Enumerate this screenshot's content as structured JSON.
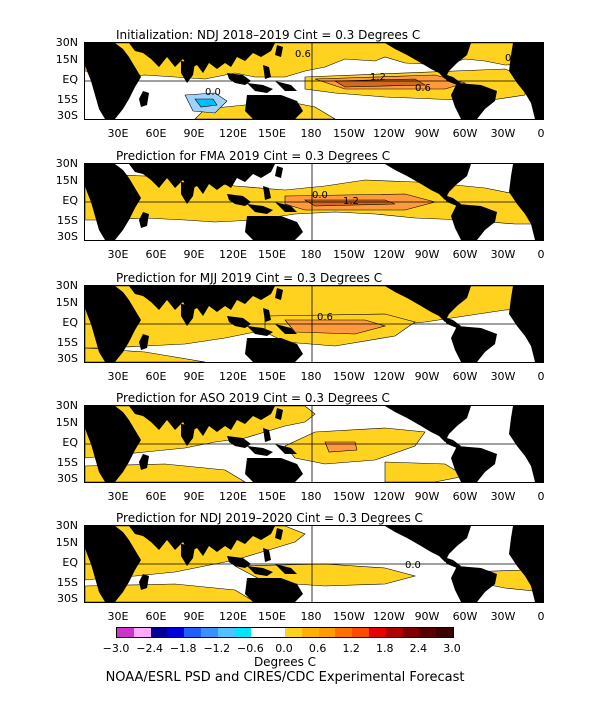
{
  "panels": [
    {
      "title": "Initialization: NDJ 2018–2019   Cint = 0.3 Degrees C",
      "contours": [
        "0.6",
        "0.0",
        "1.2",
        "0.6",
        "0.0"
      ]
    },
    {
      "title": "Prediction for FMA 2019   Cint = 0.3 Degrees C",
      "contours": [
        "0.0",
        "1.2"
      ]
    },
    {
      "title": "Prediction for MJJ 2019   Cint = 0.3 Degrees C",
      "contours": [
        "0.6"
      ]
    },
    {
      "title": "Prediction for ASO 2019   Cint = 0.3 Degrees C",
      "contours": []
    },
    {
      "title": "Prediction for NDJ 2019–2020   Cint = 0.3 Degrees C",
      "contours": [
        "0.0"
      ]
    }
  ],
  "lat_labels": [
    "30N",
    "15N",
    "EQ",
    "15S",
    "30S"
  ],
  "lon_labels": [
    "30E",
    "60E",
    "90E",
    "120E",
    "150E",
    "180",
    "150W",
    "120W",
    "90W",
    "60W",
    "30W",
    "0"
  ],
  "colorbar": {
    "labels": [
      "−3.0",
      "−2.4",
      "−1.8",
      "−1.2",
      "−0.6",
      "0.0",
      "0.6",
      "1.2",
      "1.8",
      "2.4",
      "3.0"
    ],
    "colors": [
      "#cc33cc",
      "#ffaaff",
      "#000099",
      "#0000dd",
      "#1f5fff",
      "#3b8fff",
      "#4fc3ff",
      "#00e5ff",
      "#ffffff",
      "#ffffff",
      "#ffd21f",
      "#ffb000",
      "#ff9a00",
      "#ff7000",
      "#ff4a00",
      "#e60000",
      "#b00000",
      "#800000",
      "#5a0000",
      "#3c0000"
    ]
  },
  "units": "Degrees C",
  "credit": "NOAA/ESRL PSD and CIRES/CDC Experimental Forecast"
}
